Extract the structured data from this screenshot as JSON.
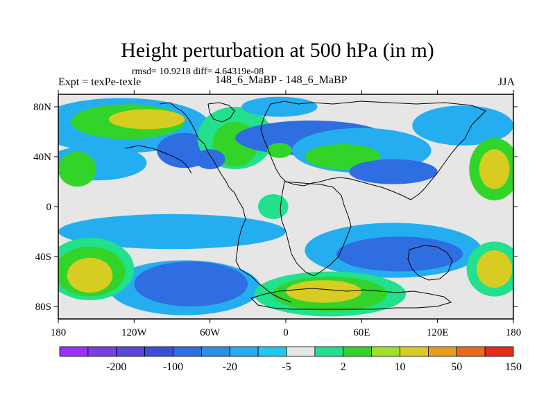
{
  "title": "Height perturbation at 500 hPa (in m)",
  "stats": "rmsd= 10.9218 diff= 4.64319e-08",
  "left_label": "Expt = texPe-texle",
  "center_label": "148_6_MaBP - 148_6_MaBP",
  "right_label": "JJA",
  "chart_data": {
    "type": "heatmap",
    "title": "Height perturbation at 500 hPa (in m)",
    "units": "m",
    "x_range": [
      -180,
      180
    ],
    "y_range": [
      -90,
      90
    ],
    "x_ticks": [
      {
        "value": -180,
        "label": "180"
      },
      {
        "value": -120,
        "label": "120W"
      },
      {
        "value": -60,
        "label": "60W"
      },
      {
        "value": 0,
        "label": "0"
      },
      {
        "value": 60,
        "label": "60E"
      },
      {
        "value": 120,
        "label": "120E"
      },
      {
        "value": 180,
        "label": "180"
      }
    ],
    "y_ticks": [
      {
        "value": 80,
        "label": "80N"
      },
      {
        "value": 40,
        "label": "40N"
      },
      {
        "value": 0,
        "label": "0"
      },
      {
        "value": -40,
        "label": "40S"
      },
      {
        "value": -80,
        "label": "80S"
      }
    ],
    "colorbar": {
      "colors": [
        "#9b30ff",
        "#7a3de6",
        "#5a48d8",
        "#3a4fd6",
        "#2e6ee0",
        "#2a8fe6",
        "#24aef0",
        "#1fc8f2",
        "#e6e6e6",
        "#22e08c",
        "#33d42a",
        "#9ee02a",
        "#d6cc22",
        "#e89e1a",
        "#ea6b1a",
        "#e62a1a"
      ],
      "labels": [
        {
          "after_index": 1,
          "text": "-200"
        },
        {
          "after_index": 3,
          "text": "-100"
        },
        {
          "after_index": 5,
          "text": "-20"
        },
        {
          "after_index": 7,
          "text": "-5"
        },
        {
          "after_index": 9,
          "text": "2"
        },
        {
          "after_index": 11,
          "text": "10"
        },
        {
          "after_index": 13,
          "text": "50"
        },
        {
          "after_index": 15,
          "text": "150"
        }
      ]
    },
    "fields": [
      {
        "level": "neutral",
        "color": "#e6e6e6",
        "lon": 0,
        "lat": 0,
        "rx": 180,
        "ry": 90
      },
      {
        "level": "-5",
        "color": "#24aef0",
        "lon": -130,
        "lat": 65,
        "rx": 70,
        "ry": 22
      },
      {
        "level": "10",
        "color": "#33d42a",
        "lon": -125,
        "lat": 68,
        "rx": 45,
        "ry": 14
      },
      {
        "level": "50",
        "color": "#d6cc22",
        "lon": -110,
        "lat": 70,
        "rx": 30,
        "ry": 8
      },
      {
        "level": "-5",
        "color": "#24aef0",
        "lon": -150,
        "lat": 35,
        "rx": 40,
        "ry": 14
      },
      {
        "level": "-20",
        "color": "#2e6ee0",
        "lon": -80,
        "lat": 45,
        "rx": 22,
        "ry": 14
      },
      {
        "level": "10",
        "color": "#33d42a",
        "lon": -165,
        "lat": 30,
        "rx": 15,
        "ry": 14
      },
      {
        "level": "2",
        "color": "#22e08c",
        "lon": -40,
        "lat": 55,
        "rx": 30,
        "ry": 25
      },
      {
        "level": "10",
        "color": "#33d42a",
        "lon": -40,
        "lat": 50,
        "rx": 18,
        "ry": 18
      },
      {
        "level": "-5",
        "color": "#24aef0",
        "lon": -5,
        "lat": 80,
        "rx": 30,
        "ry": 8
      },
      {
        "level": "-20",
        "color": "#2e6ee0",
        "lon": 20,
        "lat": 55,
        "rx": 60,
        "ry": 14
      },
      {
        "level": "-5",
        "color": "#24aef0",
        "lon": 60,
        "lat": 45,
        "rx": 55,
        "ry": 18
      },
      {
        "level": "10",
        "color": "#33d42a",
        "lon": 45,
        "lat": 40,
        "rx": 30,
        "ry": 10
      },
      {
        "level": "10",
        "color": "#33d42a",
        "lon": -5,
        "lat": 45,
        "rx": 10,
        "ry": 6
      },
      {
        "level": "-20",
        "color": "#2e6ee0",
        "lon": -60,
        "lat": 38,
        "rx": 12,
        "ry": 8
      },
      {
        "level": "-20",
        "color": "#2e6ee0",
        "lon": 85,
        "lat": 28,
        "rx": 35,
        "ry": 10
      },
      {
        "level": "-5",
        "color": "#24aef0",
        "lon": 140,
        "lat": 65,
        "rx": 40,
        "ry": 16
      },
      {
        "level": "10",
        "color": "#33d42a",
        "lon": 165,
        "lat": 30,
        "rx": 20,
        "ry": 25
      },
      {
        "level": "50",
        "color": "#d6cc22",
        "lon": 165,
        "lat": 30,
        "rx": 12,
        "ry": 16
      },
      {
        "level": "2",
        "color": "#22e08c",
        "lon": -10,
        "lat": 0,
        "rx": 12,
        "ry": 10
      },
      {
        "level": "-5",
        "color": "#24aef0",
        "lon": -90,
        "lat": -20,
        "rx": 90,
        "ry": 14
      },
      {
        "level": "-5",
        "color": "#24aef0",
        "lon": -80,
        "lat": -65,
        "rx": 60,
        "ry": 22
      },
      {
        "level": "-20",
        "color": "#2e6ee0",
        "lon": -75,
        "lat": -62,
        "rx": 45,
        "ry": 18
      },
      {
        "level": "-5",
        "color": "#24aef0",
        "lon": 85,
        "lat": -35,
        "rx": 70,
        "ry": 22
      },
      {
        "level": "-20",
        "color": "#2e6ee0",
        "lon": 90,
        "lat": -38,
        "rx": 50,
        "ry": 14
      },
      {
        "level": "2",
        "color": "#22e08c",
        "lon": -155,
        "lat": -50,
        "rx": 35,
        "ry": 25
      },
      {
        "level": "10",
        "color": "#33d42a",
        "lon": -155,
        "lat": -52,
        "rx": 28,
        "ry": 20
      },
      {
        "level": "50",
        "color": "#d6cc22",
        "lon": -155,
        "lat": -55,
        "rx": 18,
        "ry": 14
      },
      {
        "level": "2",
        "color": "#22e08c",
        "lon": 165,
        "lat": -50,
        "rx": 22,
        "ry": 22
      },
      {
        "level": "50",
        "color": "#d6cc22",
        "lon": 165,
        "lat": -50,
        "rx": 14,
        "ry": 15
      },
      {
        "level": "2",
        "color": "#22e08c",
        "lon": 35,
        "lat": -70,
        "rx": 60,
        "ry": 18
      },
      {
        "level": "10",
        "color": "#33d42a",
        "lon": 35,
        "lat": -70,
        "rx": 45,
        "ry": 14
      },
      {
        "level": "50",
        "color": "#d6cc22",
        "lon": 30,
        "lat": -68,
        "rx": 30,
        "ry": 9
      }
    ]
  }
}
